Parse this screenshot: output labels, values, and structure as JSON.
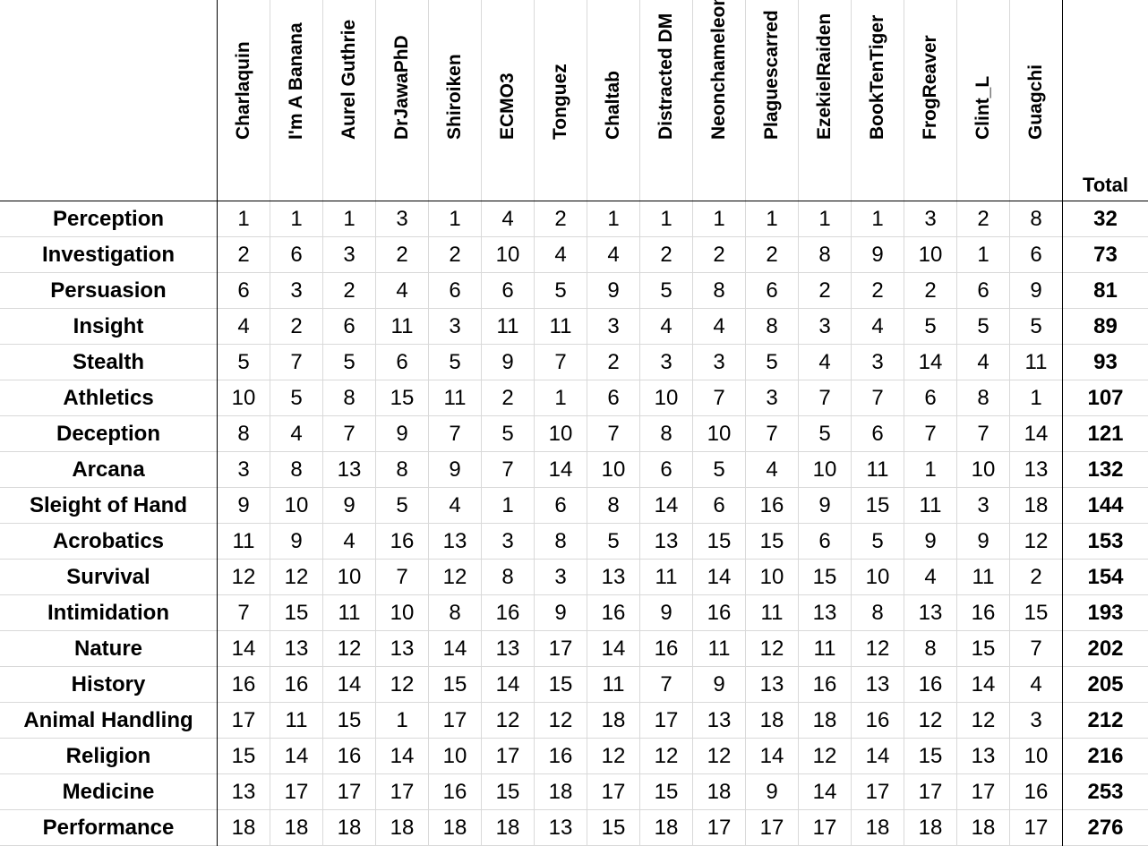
{
  "table": {
    "columns": [
      "Charlaquin",
      "I'm A Banana",
      "Aurel Guthrie",
      "DrJawaPhD",
      "Shiroiken",
      "ECMO3",
      "Tonguez",
      "Chaltab",
      "Distracted DM",
      "Neonchameleon",
      "Plaguescarred",
      "EzekielRaiden",
      "BookTenTiger",
      "FrogReaver",
      "Clint_L",
      "Guagchi"
    ],
    "total_label": "Total",
    "rows": [
      {
        "skill": "Perception",
        "values": [
          1,
          1,
          1,
          3,
          1,
          4,
          2,
          1,
          1,
          1,
          1,
          1,
          1,
          3,
          2,
          8
        ],
        "total": 32
      },
      {
        "skill": "Investigation",
        "values": [
          2,
          6,
          3,
          2,
          2,
          10,
          4,
          4,
          2,
          2,
          2,
          8,
          9,
          10,
          1,
          6
        ],
        "total": 73
      },
      {
        "skill": "Persuasion",
        "values": [
          6,
          3,
          2,
          4,
          6,
          6,
          5,
          9,
          5,
          8,
          6,
          2,
          2,
          2,
          6,
          9
        ],
        "total": 81
      },
      {
        "skill": "Insight",
        "values": [
          4,
          2,
          6,
          11,
          3,
          11,
          11,
          3,
          4,
          4,
          8,
          3,
          4,
          5,
          5,
          5
        ],
        "total": 89
      },
      {
        "skill": "Stealth",
        "values": [
          5,
          7,
          5,
          6,
          5,
          9,
          7,
          2,
          3,
          3,
          5,
          4,
          3,
          14,
          4,
          11
        ],
        "total": 93
      },
      {
        "skill": "Athletics",
        "values": [
          10,
          5,
          8,
          15,
          11,
          2,
          1,
          6,
          10,
          7,
          3,
          7,
          7,
          6,
          8,
          1
        ],
        "total": 107
      },
      {
        "skill": "Deception",
        "values": [
          8,
          4,
          7,
          9,
          7,
          5,
          10,
          7,
          8,
          10,
          7,
          5,
          6,
          7,
          7,
          14
        ],
        "total": 121
      },
      {
        "skill": "Arcana",
        "values": [
          3,
          8,
          13,
          8,
          9,
          7,
          14,
          10,
          6,
          5,
          4,
          10,
          11,
          1,
          10,
          13
        ],
        "total": 132
      },
      {
        "skill": "Sleight of Hand",
        "values": [
          9,
          10,
          9,
          5,
          4,
          1,
          6,
          8,
          14,
          6,
          16,
          9,
          15,
          11,
          3,
          18
        ],
        "total": 144
      },
      {
        "skill": "Acrobatics",
        "values": [
          11,
          9,
          4,
          16,
          13,
          3,
          8,
          5,
          13,
          15,
          15,
          6,
          5,
          9,
          9,
          12
        ],
        "total": 153
      },
      {
        "skill": "Survival",
        "values": [
          12,
          12,
          10,
          7,
          12,
          8,
          3,
          13,
          11,
          14,
          10,
          15,
          10,
          4,
          11,
          2
        ],
        "total": 154
      },
      {
        "skill": "Intimidation",
        "values": [
          7,
          15,
          11,
          10,
          8,
          16,
          9,
          16,
          9,
          16,
          11,
          13,
          8,
          13,
          16,
          15
        ],
        "total": 193
      },
      {
        "skill": "Nature",
        "values": [
          14,
          13,
          12,
          13,
          14,
          13,
          17,
          14,
          16,
          11,
          12,
          11,
          12,
          8,
          15,
          7
        ],
        "total": 202
      },
      {
        "skill": "History",
        "values": [
          16,
          16,
          14,
          12,
          15,
          14,
          15,
          11,
          7,
          9,
          13,
          16,
          13,
          16,
          14,
          4
        ],
        "total": 205
      },
      {
        "skill": "Animal Handling",
        "values": [
          17,
          11,
          15,
          1,
          17,
          12,
          12,
          18,
          17,
          13,
          18,
          18,
          16,
          12,
          12,
          3
        ],
        "total": 212
      },
      {
        "skill": "Religion",
        "values": [
          15,
          14,
          16,
          14,
          10,
          17,
          16,
          12,
          12,
          12,
          14,
          12,
          14,
          15,
          13,
          10
        ],
        "total": 216
      },
      {
        "skill": "Medicine",
        "values": [
          13,
          17,
          17,
          17,
          16,
          15,
          18,
          17,
          15,
          18,
          9,
          14,
          17,
          17,
          17,
          16
        ],
        "total": 253
      },
      {
        "skill": "Performance",
        "values": [
          18,
          18,
          18,
          18,
          18,
          18,
          13,
          15,
          18,
          17,
          17,
          17,
          18,
          18,
          18,
          17
        ],
        "total": 276
      }
    ]
  }
}
